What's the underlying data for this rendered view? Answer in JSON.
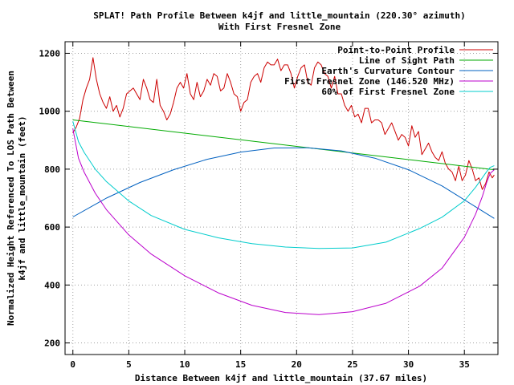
{
  "chart_data": {
    "type": "line",
    "title": "SPLAT! Path Profile Between k4jf and little_mountain (220.30° azimuth)",
    "subtitle": "With First Fresnel Zone",
    "xlabel": "Distance Between k4jf and little_mountain (37.67 miles)",
    "ylabel_line1": "Normalized Height Referenced To LOS Path Between",
    "ylabel_line2": "k4jf and little_mountain (feet)",
    "xlim": [
      -0.7,
      38
    ],
    "ylim": [
      160,
      1240
    ],
    "x_ticks": [
      0,
      5,
      10,
      15,
      20,
      25,
      30,
      35
    ],
    "y_ticks": [
      200,
      400,
      600,
      800,
      1000,
      1200
    ],
    "grid": true,
    "legend_position": "top-right",
    "series": [
      {
        "name": "Point-to-Point Profile",
        "color": "#cc0000",
        "x": [
          0,
          0.3,
          0.6,
          0.9,
          1.2,
          1.5,
          1.8,
          2.1,
          2.4,
          2.7,
          3.0,
          3.3,
          3.6,
          3.9,
          4.2,
          4.5,
          4.8,
          5.1,
          5.4,
          5.7,
          6.0,
          6.3,
          6.6,
          6.9,
          7.2,
          7.5,
          7.8,
          8.1,
          8.4,
          8.7,
          9.0,
          9.3,
          9.6,
          9.9,
          10.2,
          10.5,
          10.8,
          11.1,
          11.4,
          11.7,
          12.0,
          12.3,
          12.6,
          12.9,
          13.2,
          13.5,
          13.8,
          14.1,
          14.4,
          14.7,
          15.0,
          15.3,
          15.6,
          15.9,
          16.2,
          16.5,
          16.8,
          17.1,
          17.4,
          17.7,
          18.0,
          18.3,
          18.6,
          18.9,
          19.2,
          19.5,
          19.8,
          20.1,
          20.4,
          20.7,
          21.0,
          21.3,
          21.6,
          21.9,
          22.2,
          22.5,
          22.8,
          23.1,
          23.4,
          23.7,
          24.0,
          24.3,
          24.6,
          24.9,
          25.2,
          25.5,
          25.8,
          26.1,
          26.4,
          26.7,
          27.0,
          27.3,
          27.6,
          27.9,
          28.2,
          28.5,
          28.8,
          29.1,
          29.4,
          29.7,
          30.0,
          30.3,
          30.6,
          30.9,
          31.2,
          31.5,
          31.8,
          32.1,
          32.4,
          32.7,
          33.0,
          33.3,
          33.6,
          33.9,
          34.2,
          34.5,
          34.8,
          35.1,
          35.4,
          35.7,
          36.0,
          36.3,
          36.6,
          36.9,
          37.2,
          37.5,
          37.67
        ],
        "values": [
          925,
          945,
          975,
          1040,
          1080,
          1110,
          1185,
          1110,
          1060,
          1030,
          1010,
          1050,
          1000,
          1020,
          980,
          1010,
          1060,
          1070,
          1080,
          1060,
          1040,
          1110,
          1080,
          1040,
          1030,
          1110,
          1020,
          1000,
          970,
          990,
          1030,
          1080,
          1100,
          1080,
          1130,
          1060,
          1040,
          1100,
          1050,
          1070,
          1110,
          1090,
          1130,
          1120,
          1070,
          1080,
          1130,
          1100,
          1060,
          1050,
          1000,
          1030,
          1040,
          1100,
          1120,
          1130,
          1100,
          1150,
          1170,
          1160,
          1160,
          1180,
          1140,
          1160,
          1160,
          1130,
          1080,
          1120,
          1150,
          1160,
          1100,
          1090,
          1150,
          1170,
          1160,
          1130,
          1120,
          1080,
          1120,
          1060,
          1060,
          1020,
          1000,
          1020,
          980,
          990,
          960,
          1010,
          1010,
          960,
          970,
          970,
          960,
          920,
          940,
          960,
          930,
          900,
          920,
          910,
          880,
          950,
          910,
          930,
          850,
          870,
          890,
          860,
          840,
          830,
          860,
          820,
          800,
          790,
          760,
          810,
          760,
          780,
          830,
          800,
          760,
          770,
          730,
          750,
          790,
          770,
          780
        ]
      },
      {
        "name": "Line of Sight Path",
        "color": "#00aa00",
        "x": [
          0,
          37.67
        ],
        "values": [
          970,
          798
        ]
      },
      {
        "name": "Earth's Curvature Contour",
        "color": "#0060c0",
        "x": [
          0,
          3,
          6,
          9,
          12,
          15,
          18,
          21,
          24,
          27,
          30,
          33,
          36,
          37.67
        ],
        "values": [
          635,
          700,
          754,
          798,
          834,
          859,
          873,
          874,
          863,
          838,
          798,
          742,
          670,
          630
        ]
      },
      {
        "name": "First Fresnel Zone (146.520 MHz)",
        "color": "#bb00cc",
        "x": [
          0,
          0.5,
          1,
          2,
          3,
          5,
          7,
          10,
          13,
          16,
          19,
          22,
          25,
          28,
          31,
          33,
          35,
          36,
          36.6,
          37.0,
          37.3,
          37.67
        ],
        "values": [
          940,
          838,
          790,
          717,
          660,
          573,
          507,
          432,
          373,
          330,
          305,
          298,
          308,
          337,
          396,
          458,
          565,
          644,
          705,
          755,
          785,
          798
        ]
      },
      {
        "name": "60% of First Fresnel Zone",
        "color": "#00cccc",
        "x": [
          0,
          0.5,
          1,
          2,
          3,
          5,
          7,
          10,
          13,
          16,
          19,
          22,
          25,
          28,
          31,
          33,
          35,
          36,
          36.6,
          37.0,
          37.3,
          37.67
        ],
        "values": [
          965,
          895,
          858,
          800,
          757,
          690,
          640,
          592,
          563,
          543,
          531,
          526,
          528,
          548,
          595,
          634,
          691,
          737,
          770,
          792,
          806,
          812
        ]
      }
    ]
  }
}
